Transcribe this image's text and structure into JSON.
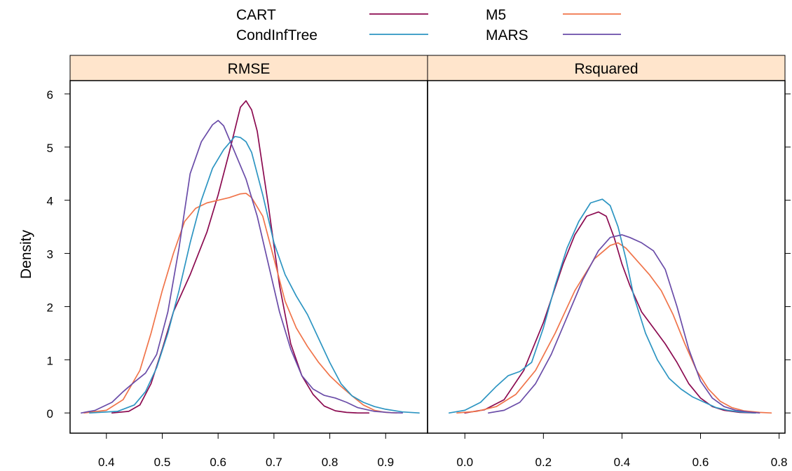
{
  "chart_data": {
    "type": "line",
    "ylabel": "Density",
    "ylim": [
      -0.38,
      6.25
    ],
    "yticks": [
      0,
      1,
      2,
      3,
      4,
      5,
      6
    ],
    "legend": {
      "placement": "top",
      "entries": [
        {
          "name": "CART",
          "color": "#8b0a50"
        },
        {
          "name": "M5",
          "color": "#f0744a"
        },
        {
          "name": "CondInfTree",
          "color": "#2d95c2"
        },
        {
          "name": "MARS",
          "color": "#6a4ca8"
        }
      ]
    },
    "panels": [
      {
        "strip": "RMSE",
        "xlim": [
          0.335,
          0.975
        ],
        "xticks": [
          "0.4",
          "0.5",
          "0.6",
          "0.7",
          "0.8",
          "0.9"
        ],
        "series": [
          {
            "name": "CART",
            "color": "#8b0a50",
            "x": [
              0.41,
              0.44,
              0.46,
              0.48,
              0.5,
              0.52,
              0.55,
              0.58,
              0.6,
              0.62,
              0.64,
              0.65,
              0.66,
              0.67,
              0.69,
              0.71,
              0.73,
              0.75,
              0.77,
              0.79,
              0.81,
              0.83,
              0.85,
              0.87
            ],
            "y": [
              0,
              0.03,
              0.15,
              0.55,
              1.2,
              1.9,
              2.6,
              3.4,
              4.1,
              4.9,
              5.75,
              5.87,
              5.7,
              5.3,
              3.9,
              2.4,
              1.3,
              0.7,
              0.35,
              0.13,
              0.04,
              0.01,
              0,
              0
            ]
          },
          {
            "name": "M5",
            "color": "#f0744a",
            "x": [
              0.36,
              0.4,
              0.43,
              0.46,
              0.48,
              0.5,
              0.52,
              0.54,
              0.56,
              0.58,
              0.6,
              0.62,
              0.64,
              0.65,
              0.66,
              0.68,
              0.7,
              0.72,
              0.74,
              0.76,
              0.78,
              0.8,
              0.82,
              0.84,
              0.86,
              0.88,
              0.9,
              0.92
            ],
            "y": [
              0,
              0.05,
              0.25,
              0.8,
              1.5,
              2.3,
              3.0,
              3.6,
              3.85,
              3.95,
              4.0,
              4.05,
              4.12,
              4.13,
              4.05,
              3.7,
              2.9,
              2.1,
              1.6,
              1.25,
              0.95,
              0.7,
              0.5,
              0.32,
              0.15,
              0.05,
              0.01,
              0
            ]
          },
          {
            "name": "CondInfTree",
            "color": "#2d95c2",
            "x": [
              0.37,
              0.42,
              0.45,
              0.47,
              0.49,
              0.51,
              0.53,
              0.55,
              0.57,
              0.59,
              0.61,
              0.63,
              0.64,
              0.65,
              0.66,
              0.68,
              0.7,
              0.72,
              0.74,
              0.76,
              0.78,
              0.8,
              0.82,
              0.84,
              0.86,
              0.88,
              0.9,
              0.93,
              0.96
            ],
            "y": [
              0,
              0.03,
              0.15,
              0.4,
              0.85,
              1.5,
              2.3,
              3.2,
              4.0,
              4.6,
              4.95,
              5.2,
              5.18,
              5.1,
              4.9,
              4.1,
              3.2,
              2.6,
              2.2,
              1.85,
              1.4,
              0.95,
              0.55,
              0.32,
              0.2,
              0.12,
              0.07,
              0.02,
              0
            ]
          },
          {
            "name": "MARS",
            "color": "#6a4ca8",
            "x": [
              0.355,
              0.38,
              0.41,
              0.43,
              0.45,
              0.47,
              0.49,
              0.51,
              0.53,
              0.55,
              0.57,
              0.59,
              0.6,
              0.61,
              0.63,
              0.65,
              0.67,
              0.69,
              0.71,
              0.73,
              0.75,
              0.77,
              0.79,
              0.81,
              0.83,
              0.85,
              0.88,
              0.91,
              0.93
            ],
            "y": [
              0,
              0.05,
              0.2,
              0.4,
              0.58,
              0.75,
              1.1,
              1.9,
              3.1,
              4.5,
              5.1,
              5.42,
              5.5,
              5.4,
              4.9,
              4.4,
              3.7,
              2.8,
              1.9,
              1.2,
              0.7,
              0.45,
              0.33,
              0.28,
              0.2,
              0.1,
              0.03,
              0.005,
              0
            ]
          }
        ]
      },
      {
        "strip": "Rsquared",
        "xlim": [
          -0.095,
          0.815
        ],
        "xticks": [
          "0.0",
          "0.2",
          "0.4",
          "0.6",
          "0.8"
        ],
        "series": [
          {
            "name": "CART",
            "color": "#8b0a50",
            "x": [
              0.0,
              0.05,
              0.1,
              0.15,
              0.2,
              0.25,
              0.28,
              0.31,
              0.34,
              0.36,
              0.38,
              0.4,
              0.42,
              0.45,
              0.48,
              0.51,
              0.54,
              0.57,
              0.6,
              0.63,
              0.66,
              0.7,
              0.74
            ],
            "y": [
              0,
              0.06,
              0.25,
              0.8,
              1.7,
              2.8,
              3.35,
              3.7,
              3.78,
              3.7,
              3.3,
              2.8,
              2.4,
              1.9,
              1.6,
              1.3,
              0.95,
              0.55,
              0.28,
              0.12,
              0.05,
              0.01,
              0
            ]
          },
          {
            "name": "M5",
            "color": "#f0744a",
            "x": [
              -0.02,
              0.03,
              0.08,
              0.13,
              0.18,
              0.23,
              0.28,
              0.33,
              0.37,
              0.39,
              0.41,
              0.44,
              0.47,
              0.5,
              0.53,
              0.56,
              0.59,
              0.62,
              0.65,
              0.68,
              0.71,
              0.75,
              0.78
            ],
            "y": [
              0,
              0.03,
              0.12,
              0.35,
              0.8,
              1.5,
              2.3,
              2.9,
              3.15,
              3.2,
              3.1,
              2.85,
              2.6,
              2.3,
              1.85,
              1.3,
              0.8,
              0.45,
              0.22,
              0.1,
              0.04,
              0.01,
              0
            ]
          },
          {
            "name": "CondInfTree",
            "color": "#2d95c2",
            "x": [
              -0.04,
              0.0,
              0.04,
              0.08,
              0.11,
              0.14,
              0.17,
              0.2,
              0.23,
              0.26,
              0.29,
              0.32,
              0.35,
              0.37,
              0.39,
              0.41,
              0.43,
              0.46,
              0.49,
              0.52,
              0.55,
              0.58,
              0.61,
              0.64,
              0.67,
              0.7,
              0.74
            ],
            "y": [
              0,
              0.05,
              0.2,
              0.5,
              0.7,
              0.78,
              0.95,
              1.6,
              2.4,
              3.1,
              3.6,
              3.95,
              4.02,
              3.9,
              3.5,
              2.9,
              2.2,
              1.5,
              1.0,
              0.65,
              0.45,
              0.3,
              0.2,
              0.1,
              0.05,
              0.02,
              0
            ]
          },
          {
            "name": "MARS",
            "color": "#6a4ca8",
            "x": [
              0.06,
              0.1,
              0.14,
              0.18,
              0.22,
              0.26,
              0.3,
              0.34,
              0.37,
              0.4,
              0.42,
              0.45,
              0.48,
              0.51,
              0.54,
              0.57,
              0.6,
              0.63,
              0.66,
              0.69,
              0.72,
              0.75
            ],
            "y": [
              0,
              0.05,
              0.2,
              0.55,
              1.1,
              1.8,
              2.5,
              3.05,
              3.3,
              3.35,
              3.3,
              3.2,
              3.05,
              2.7,
              2.0,
              1.2,
              0.6,
              0.28,
              0.12,
              0.05,
              0.02,
              0
            ]
          }
        ]
      }
    ]
  }
}
